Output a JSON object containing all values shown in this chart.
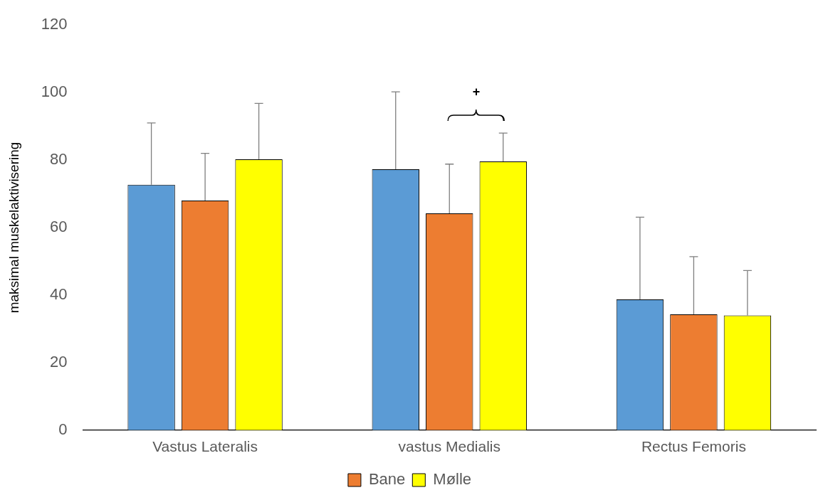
{
  "chart_data": {
    "type": "bar",
    "ylabel": "maksimal muskelaktivisering",
    "categories": [
      "Vastus Lateralis",
      "vastus Medialis",
      "Rectus Femoris"
    ],
    "series": [
      {
        "color": "#5b9bd5",
        "values": [
          72.7,
          77.3,
          38.7
        ],
        "errors": [
          [
            72.7,
            91
          ],
          [
            77.3,
            100.2
          ],
          [
            38.7,
            63.1
          ]
        ]
      },
      {
        "name": "Bane",
        "color": "#ed7d31",
        "values": [
          68,
          64.2,
          34.3
        ],
        "errors": [
          [
            68,
            82
          ],
          [
            64.2,
            78.8
          ],
          [
            34.3,
            51.4
          ]
        ]
      },
      {
        "name": "Mølle",
        "color": "#ffff00",
        "values": [
          80.2,
          79.6,
          34
        ],
        "errors": [
          [
            80.2,
            96.8
          ],
          [
            79.6,
            88
          ],
          [
            34,
            47.3
          ]
        ]
      }
    ],
    "annotations": [
      "+"
    ],
    "ylim": [
      0,
      120
    ],
    "yticks": [
      0,
      20,
      40,
      60,
      80,
      100,
      120
    ],
    "grid": false,
    "legend": "bottom"
  }
}
